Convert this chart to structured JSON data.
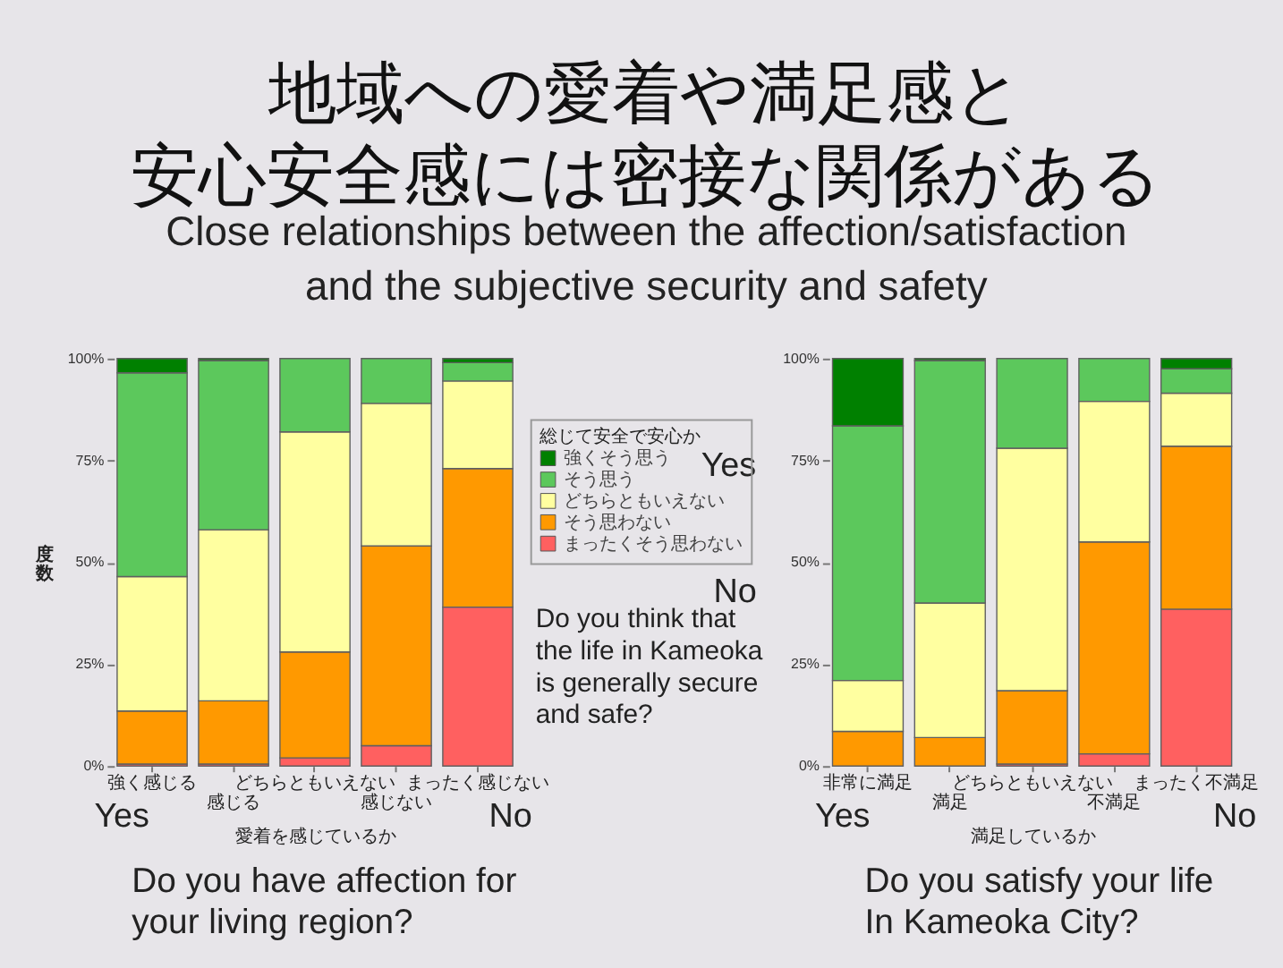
{
  "chart_data": [
    {
      "type": "bar",
      "stacked": true,
      "title": "地域への愛着や満足感と安心安全感には密接な関係がある",
      "subtitle": "Close relationships between the affection/satisfaction\nand the subjective security and safety",
      "categories": [
        "強く感じる",
        "感じる",
        "どちらともいえない",
        "感じない",
        "まったく感じない"
      ],
      "xlabel": "愛着を感じているか",
      "ylabel": "度数",
      "ylim": [
        0,
        100
      ],
      "yticks": [
        {
          "value": 0,
          "label": "0%"
        },
        {
          "value": 25,
          "label": "25%"
        },
        {
          "value": 50,
          "label": "50%"
        },
        {
          "value": 75,
          "label": "75%"
        },
        {
          "value": 100,
          "label": "100%"
        }
      ],
      "legend": "right",
      "legend_title": "総じて安全で安心か",
      "series": [
        {
          "name": "まったくそう思わない",
          "color": "#ff6060",
          "values": [
            0.5,
            0.5,
            2,
            5,
            39
          ]
        },
        {
          "name": "そう思わない",
          "color": "#ff9900",
          "values": [
            13,
            15.5,
            26,
            49,
            34
          ]
        },
        {
          "name": "どちらともいえない",
          "color": "#ffffa0",
          "values": [
            33,
            42,
            54,
            35,
            21.5
          ]
        },
        {
          "name": "そう思う",
          "color": "#5cc85c",
          "values": [
            50,
            41.5,
            18,
            11,
            4.5
          ]
        },
        {
          "name": "強くそう思う",
          "color": "#008000",
          "values": [
            3.5,
            0.5,
            0,
            0,
            1
          ]
        }
      ],
      "annotations": [
        "Yes",
        "No",
        "Do you have affection for\nyour living region?",
        "Yes",
        "No",
        "Do you think that\nthe life in Kameoka\nis generally secure\nand safe?"
      ]
    },
    {
      "type": "bar",
      "stacked": true,
      "categories": [
        "非常に満足",
        "満足",
        "どちらともいえない",
        "不満足",
        "まったく不満足"
      ],
      "xlabel": "満足しているか",
      "ylim": [
        0,
        100
      ],
      "yticks": [
        {
          "value": 0,
          "label": "0%"
        },
        {
          "value": 25,
          "label": "25%"
        },
        {
          "value": 50,
          "label": "50%"
        },
        {
          "value": 75,
          "label": "75%"
        },
        {
          "value": 100,
          "label": "100%"
        }
      ],
      "series": [
        {
          "color": "#ff6060",
          "values": [
            0,
            0,
            0.5,
            3,
            38.5
          ]
        },
        {
          "color": "#ff9900",
          "values": [
            8.5,
            7,
            18,
            52,
            40
          ]
        },
        {
          "color": "#ffffa0",
          "values": [
            12.5,
            33,
            59.5,
            34.5,
            13
          ]
        },
        {
          "color": "#5cc85c",
          "values": [
            62.5,
            59.5,
            22,
            10.5,
            6
          ]
        },
        {
          "color": "#008000",
          "values": [
            16.5,
            0.5,
            0,
            0,
            2.5
          ]
        }
      ],
      "annotations": [
        "Yes",
        "No",
        "Do you satisfy your life\nIn Kameoka City?"
      ]
    }
  ]
}
